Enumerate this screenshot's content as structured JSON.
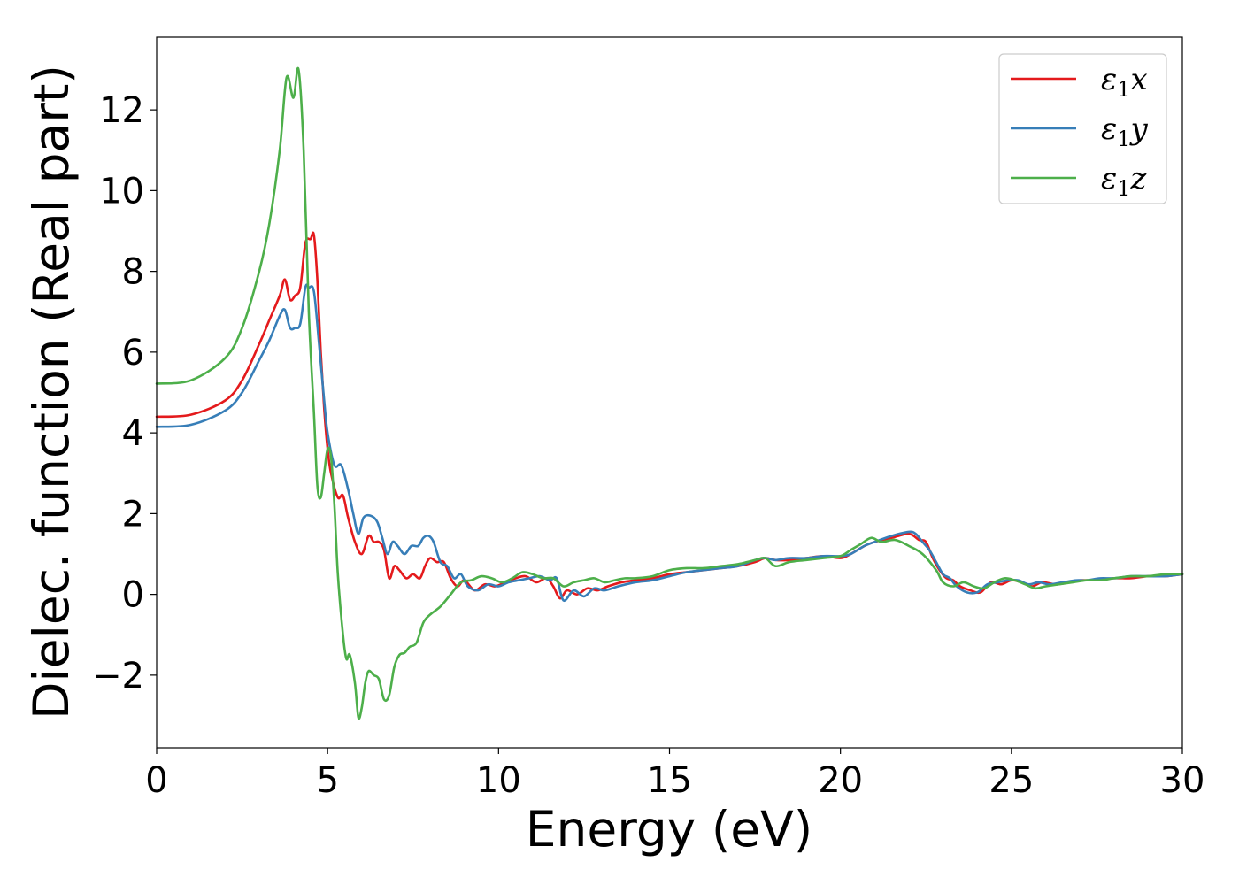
{
  "chart_data": {
    "type": "line",
    "title": "",
    "xlabel": "Energy (eV)",
    "ylabel": "Dielec. function (Real part)",
    "xlim": [
      0,
      30
    ],
    "ylim": [
      -3.8,
      13.8
    ],
    "xticks": [
      0,
      5,
      10,
      15,
      20,
      25,
      30
    ],
    "yticks": [
      -2,
      0,
      2,
      4,
      6,
      8,
      10,
      12
    ],
    "grid": false,
    "legend_position": "top-right",
    "series": [
      {
        "name": "ε₁x",
        "legend_base": "ε",
        "legend_sub": "1",
        "legend_suffix": "x",
        "color": "#e41a1c",
        "x": [
          0,
          1,
          2,
          2.5,
          3,
          3.3,
          3.6,
          3.75,
          3.9,
          4.05,
          4.2,
          4.35,
          4.5,
          4.6,
          4.7,
          4.8,
          4.9,
          5.0,
          5.1,
          5.3,
          5.45,
          5.6,
          5.8,
          6.0,
          6.2,
          6.35,
          6.5,
          6.65,
          6.8,
          6.95,
          7.1,
          7.3,
          7.5,
          7.7,
          7.85,
          8.0,
          8.2,
          8.4,
          8.6,
          8.8,
          9.0,
          9.3,
          9.6,
          9.9,
          10.2,
          10.5,
          10.8,
          11.1,
          11.4,
          11.6,
          11.8,
          12.0,
          12.3,
          12.6,
          12.9,
          13.2,
          13.6,
          14.0,
          14.5,
          15.0,
          15.5,
          16.0,
          16.5,
          17.0,
          17.5,
          17.8,
          18.1,
          18.5,
          19.0,
          19.5,
          20.0,
          20.3,
          20.7,
          21.0,
          21.5,
          22.0,
          22.3,
          22.5,
          22.7,
          22.9,
          23.1,
          23.3,
          23.5,
          23.8,
          24.1,
          24.4,
          24.7,
          25.0,
          25.3,
          25.6,
          25.9,
          26.3,
          26.7,
          27.0,
          27.5,
          28.0,
          28.5,
          29.0,
          29.5,
          30.0
        ],
        "y": [
          4.4,
          4.45,
          4.8,
          5.3,
          6.2,
          6.8,
          7.4,
          7.8,
          7.3,
          7.4,
          7.6,
          8.7,
          8.8,
          8.9,
          7.8,
          6.0,
          4.6,
          3.6,
          3.0,
          2.4,
          2.45,
          1.9,
          1.3,
          1.0,
          1.45,
          1.3,
          1.3,
          1.1,
          0.4,
          0.7,
          0.6,
          0.4,
          0.5,
          0.4,
          0.7,
          0.9,
          0.8,
          0.8,
          0.4,
          0.2,
          0.35,
          0.1,
          0.25,
          0.2,
          0.3,
          0.4,
          0.45,
          0.3,
          0.4,
          0.2,
          -0.1,
          0.1,
          0.0,
          0.15,
          0.1,
          0.2,
          0.3,
          0.35,
          0.4,
          0.5,
          0.55,
          0.6,
          0.65,
          0.7,
          0.8,
          0.9,
          0.85,
          0.85,
          0.9,
          0.95,
          0.9,
          1.0,
          1.2,
          1.3,
          1.4,
          1.5,
          1.35,
          1.3,
          0.9,
          0.6,
          0.4,
          0.35,
          0.2,
          0.1,
          0.05,
          0.3,
          0.25,
          0.35,
          0.3,
          0.2,
          0.3,
          0.25,
          0.3,
          0.35,
          0.35,
          0.4,
          0.4,
          0.45,
          0.45,
          0.5
        ]
      },
      {
        "name": "ε₁y",
        "legend_base": "ε",
        "legend_sub": "1",
        "legend_suffix": "y",
        "color": "#377eb8",
        "x": [
          0,
          1,
          2,
          2.5,
          3,
          3.3,
          3.6,
          3.75,
          3.9,
          4.05,
          4.2,
          4.35,
          4.45,
          4.6,
          4.75,
          4.9,
          5.0,
          5.2,
          5.4,
          5.6,
          5.75,
          5.9,
          6.05,
          6.25,
          6.45,
          6.6,
          6.75,
          6.9,
          7.05,
          7.25,
          7.45,
          7.65,
          7.8,
          7.95,
          8.1,
          8.3,
          8.5,
          8.7,
          8.9,
          9.1,
          9.4,
          9.7,
          10.0,
          10.3,
          10.6,
          10.9,
          11.2,
          11.5,
          11.7,
          11.9,
          12.2,
          12.5,
          12.8,
          13.1,
          13.5,
          14.0,
          14.5,
          15.0,
          15.5,
          16.0,
          16.5,
          17.0,
          17.5,
          17.8,
          18.1,
          18.5,
          19.0,
          19.5,
          20.0,
          20.3,
          20.7,
          21.0,
          21.5,
          22.0,
          22.2,
          22.4,
          22.6,
          22.8,
          23.0,
          23.2,
          23.4,
          23.7,
          24.0,
          24.3,
          24.6,
          24.9,
          25.2,
          25.5,
          25.8,
          26.1,
          26.5,
          26.9,
          27.2,
          27.6,
          28.0,
          28.5,
          29.0,
          29.5,
          30.0
        ],
        "y": [
          4.15,
          4.2,
          4.55,
          5.0,
          5.8,
          6.3,
          6.9,
          7.05,
          6.6,
          6.6,
          6.7,
          7.6,
          7.6,
          7.5,
          6.2,
          4.8,
          4.0,
          3.2,
          3.2,
          2.6,
          2.0,
          1.5,
          1.9,
          1.95,
          1.8,
          1.4,
          1.0,
          1.3,
          1.2,
          1.0,
          1.2,
          1.2,
          1.4,
          1.45,
          1.3,
          0.8,
          0.7,
          0.4,
          0.5,
          0.2,
          0.1,
          0.25,
          0.2,
          0.3,
          0.35,
          0.4,
          0.45,
          0.35,
          0.4,
          -0.15,
          0.1,
          -0.05,
          0.15,
          0.1,
          0.2,
          0.3,
          0.35,
          0.45,
          0.55,
          0.6,
          0.65,
          0.7,
          0.85,
          0.9,
          0.85,
          0.9,
          0.9,
          0.95,
          0.95,
          1.0,
          1.2,
          1.3,
          1.45,
          1.55,
          1.5,
          1.3,
          1.1,
          0.8,
          0.5,
          0.4,
          0.2,
          0.05,
          0.05,
          0.25,
          0.3,
          0.35,
          0.35,
          0.25,
          0.3,
          0.25,
          0.3,
          0.35,
          0.35,
          0.4,
          0.4,
          0.45,
          0.45,
          0.45,
          0.5
        ]
      },
      {
        "name": "ε₁z",
        "legend_base": "ε",
        "legend_sub": "1",
        "legend_suffix": "z",
        "color": "#4daf4a",
        "x": [
          0,
          1,
          2,
          2.5,
          3,
          3.3,
          3.6,
          3.8,
          4.0,
          4.15,
          4.3,
          4.45,
          4.6,
          4.7,
          4.8,
          4.9,
          5.0,
          5.1,
          5.2,
          5.3,
          5.45,
          5.55,
          5.65,
          5.8,
          5.9,
          6.0,
          6.1,
          6.2,
          6.35,
          6.5,
          6.65,
          6.8,
          6.95,
          7.1,
          7.25,
          7.4,
          7.6,
          7.8,
          8.0,
          8.3,
          8.6,
          8.9,
          9.2,
          9.5,
          9.8,
          10.1,
          10.4,
          10.7,
          11.0,
          11.3,
          11.6,
          11.9,
          12.2,
          12.5,
          12.8,
          13.1,
          13.4,
          13.7,
          14.0,
          14.5,
          15.0,
          15.5,
          16.0,
          16.5,
          17.0,
          17.5,
          17.8,
          18.1,
          18.5,
          19.0,
          19.5,
          20.0,
          20.3,
          20.6,
          20.9,
          21.2,
          21.6,
          22.0,
          22.4,
          22.8,
          23.0,
          23.3,
          23.6,
          23.9,
          24.2,
          24.5,
          24.8,
          25.1,
          25.4,
          25.7,
          26.0,
          26.4,
          26.8,
          27.2,
          27.6,
          28.0,
          28.5,
          29.0,
          29.5,
          30.0
        ],
        "y": [
          5.22,
          5.3,
          5.85,
          6.6,
          8.0,
          9.2,
          11.0,
          12.8,
          12.3,
          13.0,
          11.0,
          7.0,
          4.5,
          2.7,
          2.4,
          3.0,
          3.6,
          3.4,
          2.2,
          0.5,
          -1.0,
          -1.6,
          -1.5,
          -2.2,
          -3.05,
          -2.8,
          -2.2,
          -1.9,
          -2.0,
          -2.1,
          -2.6,
          -2.5,
          -1.8,
          -1.5,
          -1.45,
          -1.3,
          -1.2,
          -0.7,
          -0.5,
          -0.3,
          0.0,
          0.3,
          0.35,
          0.45,
          0.4,
          0.3,
          0.4,
          0.55,
          0.5,
          0.4,
          0.4,
          0.2,
          0.3,
          0.35,
          0.4,
          0.3,
          0.35,
          0.4,
          0.4,
          0.45,
          0.6,
          0.65,
          0.65,
          0.7,
          0.75,
          0.85,
          0.9,
          0.7,
          0.8,
          0.85,
          0.9,
          0.95,
          1.1,
          1.25,
          1.4,
          1.3,
          1.35,
          1.2,
          1.0,
          0.6,
          0.3,
          0.2,
          0.3,
          0.2,
          0.15,
          0.3,
          0.4,
          0.35,
          0.25,
          0.15,
          0.2,
          0.25,
          0.3,
          0.35,
          0.35,
          0.4,
          0.45,
          0.45,
          0.5,
          0.5
        ]
      }
    ]
  }
}
